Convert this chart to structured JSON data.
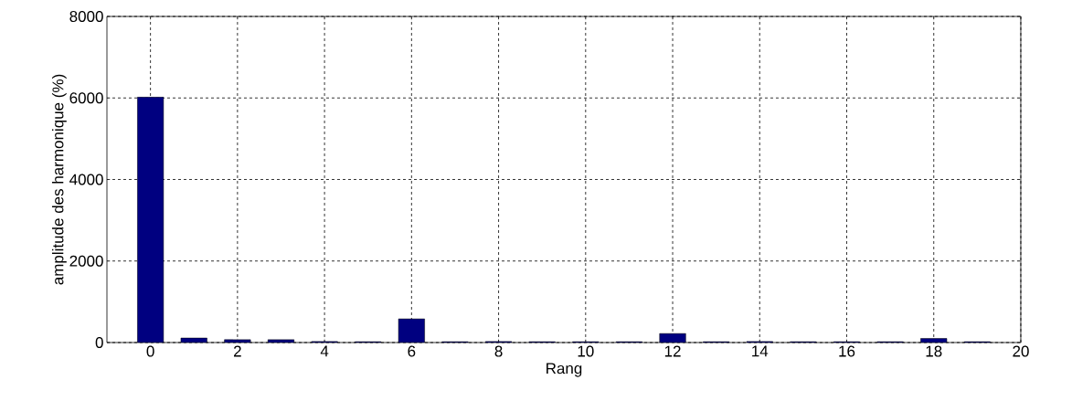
{
  "chart_data": {
    "type": "bar",
    "xlabel": "Rang",
    "ylabel": "amplitude des harmonique (%)",
    "x": [
      0,
      1,
      2,
      3,
      4,
      5,
      6,
      7,
      8,
      9,
      10,
      11,
      12,
      13,
      14,
      15,
      16,
      17,
      18,
      19
    ],
    "values": [
      6020,
      110,
      70,
      70,
      25,
      20,
      580,
      20,
      25,
      20,
      20,
      20,
      220,
      20,
      25,
      20,
      20,
      20,
      100,
      20
    ],
    "color": "#000080",
    "xlim": [
      -1,
      20
    ],
    "xticks": [
      0,
      2,
      4,
      6,
      8,
      10,
      12,
      14,
      16,
      18,
      20
    ],
    "ylim": [
      0,
      8000
    ],
    "yticks": [
      0,
      2000,
      4000,
      6000,
      8000
    ],
    "grid": true
  }
}
